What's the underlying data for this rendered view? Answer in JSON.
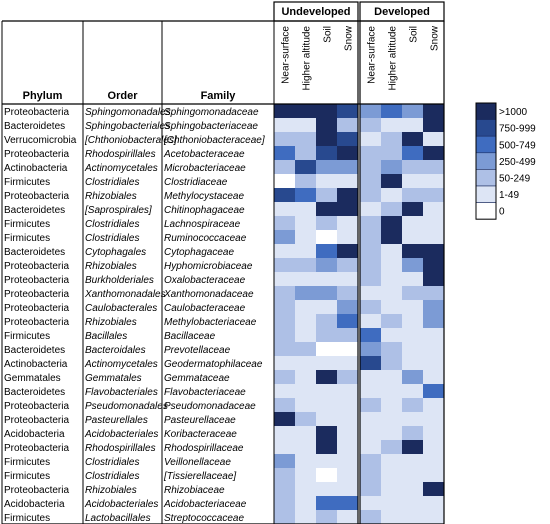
{
  "chart_data": {
    "type": "heatmap",
    "row_headers": [
      "Phylum",
      "Order",
      "Family"
    ],
    "groups": [
      {
        "name": "Undeveloped",
        "columns": [
          "Near-surface",
          "Higher altitude",
          "Soil",
          "Snow"
        ]
      },
      {
        "name": "Developed",
        "columns": [
          "Near-surface",
          "Higher altitude",
          "Soil",
          "Snow"
        ]
      }
    ],
    "legend": [
      {
        "label": ">1000",
        "color": "#1b2b5e",
        "level": 6
      },
      {
        "label": "750-999",
        "color": "#28498f",
        "level": 5
      },
      {
        "label": "500-749",
        "color": "#3f6cc0",
        "level": 4
      },
      {
        "label": "250-499",
        "color": "#7c9bd5",
        "level": 3
      },
      {
        "label": "50-249",
        "color": "#aec0e6",
        "level": 2
      },
      {
        "label": "1-49",
        "color": "#dde5f5",
        "level": 1
      },
      {
        "label": "0",
        "color": "#ffffff",
        "level": 0
      }
    ],
    "rows": [
      {
        "phylum": "Proteobacteria",
        "order": "Sphingomonadales",
        "family": "Sphingomonadaceae",
        "levels": [
          6,
          6,
          6,
          5,
          3,
          4,
          3,
          6
        ]
      },
      {
        "phylum": "Bacteroidetes",
        "order": "Sphingobacteriales",
        "family": "Sphingobacteriaceae",
        "levels": [
          1,
          1,
          6,
          2,
          2,
          1,
          1,
          6
        ]
      },
      {
        "phylum": "Verrucomicrobia",
        "order": "[Chthoniobacterales]",
        "family": "[Chthoniobacteraceae]",
        "levels": [
          2,
          2,
          6,
          5,
          1,
          2,
          6,
          1
        ]
      },
      {
        "phylum": "Proteobacteria",
        "order": "Rhodospirillales",
        "family": "Acetobacteraceae",
        "levels": [
          4,
          2,
          5,
          6,
          2,
          2,
          4,
          6
        ]
      },
      {
        "phylum": "Actinobacteria",
        "order": "Actinomycetales",
        "family": "Microbacteriaceae",
        "levels": [
          2,
          5,
          3,
          3,
          2,
          3,
          2,
          2
        ]
      },
      {
        "phylum": "Firmicutes",
        "order": "Clostridiales",
        "family": "Clostridiaceae",
        "levels": [
          0,
          2,
          1,
          1,
          2,
          6,
          1,
          1
        ]
      },
      {
        "phylum": "Proteobacteria",
        "order": "Rhizobiales",
        "family": "Methylocystaceae",
        "levels": [
          5,
          4,
          2,
          6,
          2,
          1,
          2,
          2
        ]
      },
      {
        "phylum": "Bacteroidetes",
        "order": "[Saprospirales]",
        "family": "Chitinophagaceae",
        "levels": [
          1,
          1,
          6,
          6,
          1,
          2,
          6,
          1
        ]
      },
      {
        "phylum": "Firmicutes",
        "order": "Clostridiales",
        "family": "Lachnospiraceae",
        "levels": [
          2,
          1,
          2,
          1,
          2,
          6,
          1,
          1
        ]
      },
      {
        "phylum": "Firmicutes",
        "order": "Clostridiales",
        "family": "Ruminococcaceae",
        "levels": [
          3,
          1,
          0,
          1,
          2,
          6,
          1,
          1
        ]
      },
      {
        "phylum": "Bacteroidetes",
        "order": "Cytophagales",
        "family": "Cytophagaceae",
        "levels": [
          1,
          1,
          4,
          6,
          2,
          1,
          6,
          6
        ]
      },
      {
        "phylum": "Proteobacteria",
        "order": "Rhizobiales",
        "family": "Hyphomicrobiaceae",
        "levels": [
          2,
          2,
          3,
          2,
          2,
          1,
          3,
          6
        ]
      },
      {
        "phylum": "Proteobacteria",
        "order": "Burkholderiales",
        "family": "Oxalobacteraceae",
        "levels": [
          1,
          1,
          1,
          1,
          2,
          1,
          1,
          6
        ]
      },
      {
        "phylum": "Proteobacteria",
        "order": "Xanthomonadales",
        "family": "Xanthomonadaceae",
        "levels": [
          2,
          3,
          3,
          2,
          1,
          1,
          2,
          2
        ]
      },
      {
        "phylum": "Proteobacteria",
        "order": "Caulobacterales",
        "family": "Caulobacteraceae",
        "levels": [
          2,
          1,
          1,
          3,
          2,
          1,
          1,
          3
        ]
      },
      {
        "phylum": "Proteobacteria",
        "order": "Rhizobiales",
        "family": "Methylobacteriaceae",
        "levels": [
          2,
          1,
          2,
          4,
          1,
          2,
          1,
          3
        ]
      },
      {
        "phylum": "Firmicutes",
        "order": "Bacillales",
        "family": "Bacillaceae",
        "levels": [
          2,
          1,
          2,
          2,
          4,
          1,
          1,
          1
        ]
      },
      {
        "phylum": "Bacteroidetes",
        "order": "Bacteroidales",
        "family": "Prevotellaceae",
        "levels": [
          2,
          2,
          0,
          0,
          3,
          2,
          1,
          1
        ]
      },
      {
        "phylum": "Actinobacteria",
        "order": "Actinomycetales",
        "family": "Geodermatophilaceae",
        "levels": [
          1,
          1,
          1,
          1,
          5,
          2,
          1,
          1
        ]
      },
      {
        "phylum": "Gemmatales",
        "order": "Gemmatales",
        "family": "Gemmataceae",
        "levels": [
          2,
          1,
          6,
          2,
          1,
          1,
          3,
          1
        ]
      },
      {
        "phylum": "Bacteroidetes",
        "order": "Flavobacteriales",
        "family": "Flavobacteriaceae",
        "levels": [
          1,
          1,
          1,
          1,
          1,
          1,
          1,
          4
        ]
      },
      {
        "phylum": "Proteobacteria",
        "order": "Pseudomonadales",
        "family": "Pseudomonadaceae",
        "levels": [
          2,
          1,
          1,
          1,
          2,
          1,
          2,
          1
        ]
      },
      {
        "phylum": "Proteobacteria",
        "order": "Pasteurellales",
        "family": "Pasteurellaceae",
        "levels": [
          6,
          2,
          1,
          1,
          1,
          1,
          1,
          1
        ]
      },
      {
        "phylum": "Acidobacteria",
        "order": "Acidobacteriales",
        "family": "Koribacteraceae",
        "levels": [
          1,
          1,
          6,
          1,
          1,
          1,
          2,
          1
        ]
      },
      {
        "phylum": "Proteobacteria",
        "order": "Rhodospirillales",
        "family": "Rhodospirillaceae",
        "levels": [
          1,
          1,
          6,
          1,
          1,
          2,
          6,
          1
        ]
      },
      {
        "phylum": "Firmicutes",
        "order": "Clostridiales",
        "family": "Veillonellaceae",
        "levels": [
          3,
          1,
          1,
          1,
          2,
          1,
          1,
          1
        ]
      },
      {
        "phylum": "Firmicutes",
        "order": "Clostridiales",
        "family": "[Tissierellaceae]",
        "levels": [
          2,
          1,
          0,
          1,
          2,
          1,
          1,
          1
        ]
      },
      {
        "phylum": "Proteobacteria",
        "order": "Rhizobiales",
        "family": "Rhizobiaceae",
        "levels": [
          2,
          1,
          1,
          1,
          2,
          1,
          1,
          6
        ]
      },
      {
        "phylum": "Acidobacteria",
        "order": "Acidobacteriales",
        "family": "Acidobacteriaceae",
        "levels": [
          2,
          1,
          4,
          4,
          1,
          1,
          1,
          1
        ]
      },
      {
        "phylum": "Firmicutes",
        "order": "Lactobacillales",
        "family": "Streptococcaceae",
        "levels": [
          2,
          1,
          2,
          1,
          2,
          1,
          1,
          1
        ]
      }
    ]
  }
}
